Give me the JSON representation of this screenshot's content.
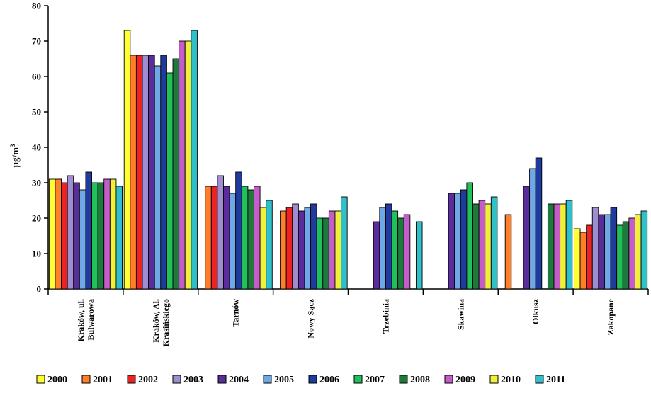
{
  "chart_data": {
    "type": "bar",
    "title": "",
    "xlabel": "",
    "ylabel": "µg/m",
    "ylabel_superscript": "3",
    "ylim": [
      0,
      80
    ],
    "yticks": [
      "0",
      "10",
      "20",
      "30",
      "40",
      "50",
      "60",
      "70",
      "80"
    ],
    "grid": false,
    "legend_position": "bottom",
    "categories": [
      [
        "Kraków, ul.",
        "Bulwarowa"
      ],
      [
        "Kraków, Al.",
        "Krasińskiego"
      ],
      [
        "Tarnów"
      ],
      [
        "Nowy Sącz"
      ],
      [
        "Trzebinia"
      ],
      [
        "Skawina"
      ],
      [
        "Olkusz"
      ],
      [
        "Zakopane"
      ]
    ],
    "series": [
      {
        "name": "2000",
        "color": "#ffff33",
        "values": [
          31,
          73,
          null,
          null,
          null,
          null,
          null,
          17
        ]
      },
      {
        "name": "2001",
        "color": "#ff7f2a",
        "values": [
          31,
          66,
          29,
          22,
          null,
          null,
          21,
          16
        ]
      },
      {
        "name": "2002",
        "color": "#ee2222",
        "values": [
          30,
          66,
          29,
          23,
          null,
          null,
          null,
          18
        ]
      },
      {
        "name": "2003",
        "color": "#9e8ed0",
        "values": [
          32,
          66,
          32,
          24,
          null,
          null,
          null,
          23
        ]
      },
      {
        "name": "2004",
        "color": "#5a2d9a",
        "values": [
          30,
          66,
          29,
          22,
          19,
          27,
          29,
          21
        ]
      },
      {
        "name": "2005",
        "color": "#6fa8e6",
        "values": [
          28,
          63,
          27,
          23,
          23,
          27,
          34,
          21
        ]
      },
      {
        "name": "2006",
        "color": "#1f3b9e",
        "values": [
          33,
          66,
          33,
          24,
          24,
          28,
          37,
          23
        ]
      },
      {
        "name": "2007",
        "color": "#22c05a",
        "values": [
          30,
          61,
          29,
          20,
          22,
          30,
          null,
          18
        ]
      },
      {
        "name": "2008",
        "color": "#1e7a3c",
        "values": [
          30,
          65,
          28,
          20,
          20,
          24,
          24,
          19
        ]
      },
      {
        "name": "2009",
        "color": "#c45cc9",
        "values": [
          31,
          70,
          29,
          22,
          21,
          25,
          24,
          20
        ]
      },
      {
        "name": "2010",
        "color": "#f2ef3a",
        "values": [
          31,
          70,
          23,
          22,
          null,
          24,
          24,
          21
        ]
      },
      {
        "name": "2011",
        "color": "#30c0cc",
        "values": [
          29,
          73,
          25,
          26,
          19,
          26,
          25,
          22
        ]
      }
    ]
  }
}
